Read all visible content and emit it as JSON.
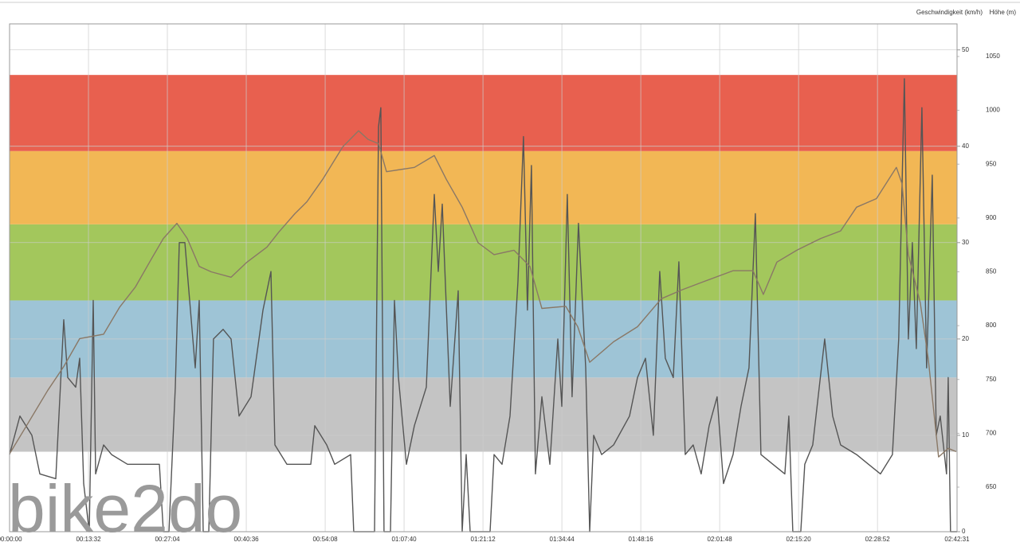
{
  "chart_data": {
    "type": "line",
    "y_axis_label": "Geschwindigkeit (km/h)",
    "y2_axis_label": "Höhe (m)",
    "watermark": "bike2do",
    "xlim": [
      0,
      9751
    ],
    "xticks": [
      {
        "value": 0,
        "label": "00:00:00"
      },
      {
        "value": 812,
        "label": "00:13:32"
      },
      {
        "value": 1624,
        "label": "00:27:04"
      },
      {
        "value": 2436,
        "label": "00:40:36"
      },
      {
        "value": 3248,
        "label": "00:54:08"
      },
      {
        "value": 4060,
        "label": "01:07:40"
      },
      {
        "value": 4872,
        "label": "01:21:12"
      },
      {
        "value": 5684,
        "label": "01:34:44"
      },
      {
        "value": 6496,
        "label": "01:48:16"
      },
      {
        "value": 7308,
        "label": "02:01:48"
      },
      {
        "value": 8120,
        "label": "02:15:20"
      },
      {
        "value": 8932,
        "label": "02:28:52"
      },
      {
        "value": 9751,
        "label": "02:42:31"
      }
    ],
    "ylim": [
      0,
      52.7
    ],
    "yticks": [
      0,
      10,
      20,
      30,
      40,
      50
    ],
    "y2lim": [
      608.6,
      1080.3
    ],
    "y2ticks": [
      650,
      700,
      750,
      800,
      850,
      900,
      950,
      1000,
      1050
    ],
    "grid": true,
    "zones": [
      {
        "from": 8.3,
        "to": 16,
        "color": "#c4c4c4"
      },
      {
        "from": 16,
        "to": 24,
        "color": "#9ec4d6"
      },
      {
        "from": 24,
        "to": 31.9,
        "color": "#a3c75c"
      },
      {
        "from": 31.9,
        "to": 39.5,
        "color": "#f2b755"
      },
      {
        "from": 39.5,
        "to": 47.4,
        "color": "#e8604f"
      }
    ],
    "series": [
      {
        "color": "#555555",
        "axis": "y",
        "x": [
          0,
          107,
          230,
          312,
          476,
          558,
          599,
          681,
          722,
          763,
          820,
          861,
          886,
          968,
          1050,
          1214,
          1542,
          1583,
          1640,
          1706,
          1747,
          1804,
          1870,
          1911,
          1952,
          1993,
          2050,
          2099,
          2198,
          2280,
          2362,
          2485,
          2608,
          2690,
          2731,
          2854,
          3100,
          3141,
          3264,
          3346,
          3510,
          3542,
          3756,
          3797,
          3821,
          3854,
          3920,
          3961,
          4002,
          4084,
          4166,
          4289,
          4371,
          4412,
          4453,
          4535,
          4617,
          4658,
          4699,
          4740,
          4945,
          4986,
          5068,
          5150,
          5232,
          5289,
          5330,
          5371,
          5412,
          5478,
          5560,
          5642,
          5683,
          5740,
          5789,
          5855,
          5929,
          5970,
          6011,
          6093,
          6216,
          6380,
          6462,
          6544,
          6626,
          6691,
          6749,
          6831,
          6888,
          6954,
          7036,
          7118,
          7200,
          7282,
          7347,
          7446,
          7528,
          7610,
          7675,
          7733,
          7856,
          7979,
          8020,
          8061,
          8143,
          8184,
          8266,
          8389,
          8471,
          8553,
          8717,
          8840,
          8963,
          9086,
          9151,
          9209,
          9250,
          9291,
          9332,
          9389,
          9438,
          9496,
          9537,
          9578,
          9643,
          9660,
          9684,
          9751
        ],
        "values": [
          8,
          12,
          10,
          6,
          5.5,
          22,
          16,
          15,
          18,
          5,
          0,
          24,
          6,
          9,
          8,
          7,
          7,
          0,
          0,
          15,
          30,
          30,
          22,
          17,
          24,
          0,
          0,
          20,
          21,
          20,
          12,
          14,
          23,
          27,
          9,
          7,
          7,
          11,
          9,
          7,
          8,
          0,
          0,
          42,
          44,
          0,
          0,
          24,
          16,
          7,
          11,
          15,
          35,
          27,
          34,
          13,
          25,
          0,
          8,
          0,
          0,
          8,
          7,
          12,
          26,
          41,
          23,
          38,
          6,
          14,
          7,
          20,
          13,
          35,
          14,
          32,
          17,
          0,
          10,
          8,
          9,
          12,
          16,
          18,
          10,
          27,
          18,
          16,
          28,
          8,
          9,
          6,
          11,
          14,
          5,
          8,
          13,
          17,
          33,
          8,
          7,
          6,
          12,
          0,
          0,
          7,
          9,
          20,
          12,
          9,
          8,
          7,
          6,
          8,
          20,
          47,
          20,
          30,
          19,
          44,
          17,
          37,
          10,
          12,
          6,
          16,
          0,
          0
        ]
      },
      {
        "color": "#8a7866",
        "axis": "y2",
        "x": [
          0,
          148,
          394,
          558,
          722,
          968,
          1132,
          1296,
          1460,
          1583,
          1722,
          1829,
          1952,
          2075,
          2280,
          2444,
          2649,
          2772,
          2936,
          3059,
          3223,
          3428,
          3592,
          3690,
          3797,
          3879,
          4166,
          4371,
          4494,
          4658,
          4822,
          4986,
          5191,
          5355,
          5478,
          5724,
          5847,
          5970,
          6216,
          6462,
          6708,
          6913,
          7118,
          7446,
          7651,
          7757,
          7897,
          8102,
          8348,
          8553,
          8717,
          8922,
          9127,
          9184,
          9250,
          9373,
          9455,
          9561,
          9660,
          9742
        ],
        "values": [
          681,
          703,
          740,
          762,
          788,
          792,
          817,
          836,
          862,
          881,
          895,
          881,
          855,
          850,
          845,
          859,
          873,
          887,
          904,
          915,
          936,
          966,
          981,
          973,
          969,
          943,
          947,
          958,
          936,
          910,
          877,
          866,
          870,
          855,
          816,
          818,
          799,
          766,
          785,
          799,
          825,
          833,
          840,
          851,
          851,
          829,
          859,
          870,
          881,
          888,
          910,
          918,
          947,
          932,
          866,
          821,
          769,
          678,
          686,
          683
        ]
      }
    ]
  }
}
